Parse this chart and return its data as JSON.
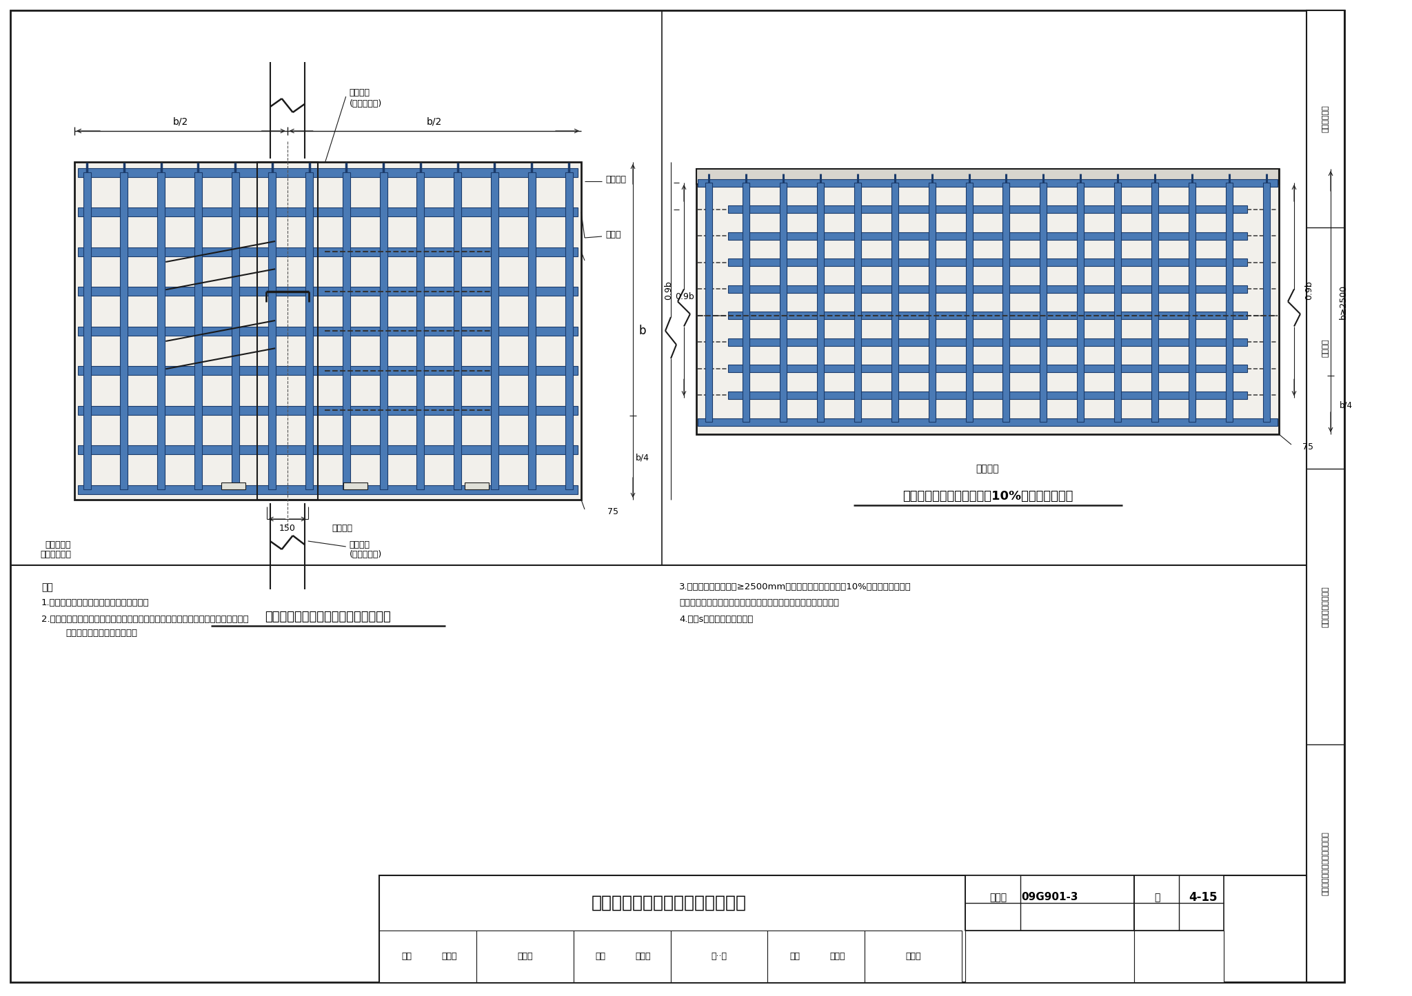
{
  "steel_blue": "#4a7ab5",
  "steel_dark": "#1a3a6a",
  "line_color": "#1a1a1a",
  "bg_light": "#f2f0eb",
  "white": "#ffffff",
  "title_main": "条形基础底板受力钙筋的排布构造",
  "title_left": "条形基础无交接底板端部鑉筋排布构造",
  "title_right": "条形基础底板配筋长度减短10%的鑉筋排布构造",
  "label_shuli": "受力筋",
  "label_fenbujin": "分布鑉筋",
  "label_jichulianjia_1": "基础连梁",
  "label_jichulianjia_2": "(无基础底板)",
  "label_zhijing_1": "直径和间距",
  "label_zhijing_2": "同底板受力筋",
  "note_title": "注：",
  "note1": "1.基础的配筋及几何尺寸详具体结构设计。",
  "note2a": "2.实际工程与本图不相同时，应由设计者设计。如果要求施工参照本图构造施工时，",
  "note2b": "设计应给出相应的变更说明。",
  "note3a": "3.当条形基础底板宽度≥2500mm时，底板配筋长度可减小10%配置。但是在进入",
  "note3b": "底板交接区的受力鑉筋和无交接底板端部的第一根鑉筋不应减短。",
  "note4": "4.图中s为分布鑉筋的间距。",
  "figure_num": "09G901-3",
  "figure_id": "4-15",
  "page_label": "页",
  "tb_review": "审核",
  "tb_reviewer": "黄志刮",
  "tb_proofread": "校对",
  "tb_proofreader": "张工文",
  "tb_check": "张‧‧文",
  "tb_designer": "设计",
  "tb_design_name": "王怀元",
  "tb_approver": "孙伺元",
  "tb_tujihao": "图集号",
  "right_label_1": "一般构造要求",
  "right_label_2": "条形基础",
  "right_label_3": "筋形基础和地下结构",
  "right_label_4": "独立基础、条形基础、桦基承台"
}
